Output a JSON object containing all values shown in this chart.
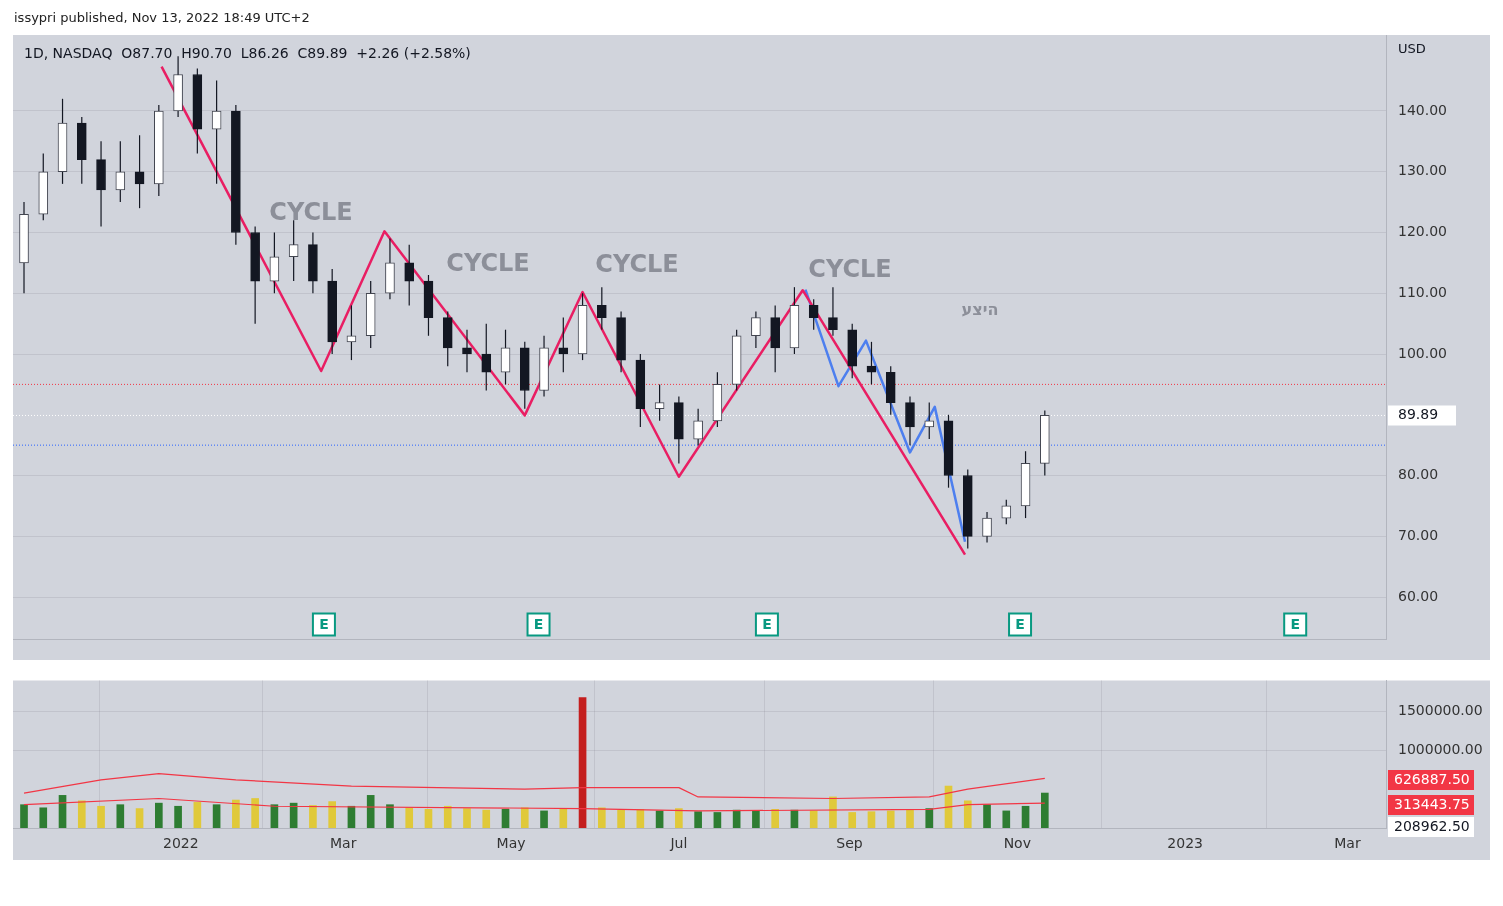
{
  "chart_data": [
    {
      "type": "candlestick",
      "title": "1D, NASDAQ  O87.70  H90.70  L86.26  C89.89  +2.26 (+2.58%)",
      "subtitle": "issypri published, Nov 13, 2022 18:49 UTC+2",
      "ylabel": "USD",
      "x": [
        "2021-11-05",
        "2021-11-12",
        "2021-11-19",
        "2021-11-26",
        "2021-12-03",
        "2021-12-10",
        "2021-12-17",
        "2021-12-24",
        "2021-12-31",
        "2022-01-07",
        "2022-01-14",
        "2022-01-21",
        "2022-01-28",
        "2022-02-04",
        "2022-02-11",
        "2022-02-18",
        "2022-02-25",
        "2022-03-04",
        "2022-03-11",
        "2022-03-18",
        "2022-03-25",
        "2022-04-01",
        "2022-04-08",
        "2022-04-15",
        "2022-04-22",
        "2022-04-29",
        "2022-05-06",
        "2022-05-13",
        "2022-05-20",
        "2022-05-27",
        "2022-06-03",
        "2022-06-10",
        "2022-06-17",
        "2022-06-24",
        "2022-07-01",
        "2022-07-08",
        "2022-07-15",
        "2022-07-22",
        "2022-07-29",
        "2022-08-05",
        "2022-08-12",
        "2022-08-19",
        "2022-08-26",
        "2022-09-02",
        "2022-09-09",
        "2022-09-16",
        "2022-09-23",
        "2022-09-30",
        "2022-10-07",
        "2022-10-14",
        "2022-10-21",
        "2022-10-28",
        "2022-11-04",
        "2022-11-11"
      ],
      "ohlc": [
        [
          115,
          125,
          110,
          123
        ],
        [
          123,
          133,
          122,
          130
        ],
        [
          130,
          142,
          128,
          138
        ],
        [
          138,
          139,
          128,
          132
        ],
        [
          132,
          135,
          121,
          127
        ],
        [
          127,
          135,
          125,
          130
        ],
        [
          130,
          136,
          124,
          128
        ],
        [
          128,
          141,
          126,
          140
        ],
        [
          140,
          149,
          139,
          146
        ],
        [
          146,
          147,
          133,
          137
        ],
        [
          137,
          145,
          128,
          140
        ],
        [
          140,
          141,
          118,
          120
        ],
        [
          120,
          121,
          105,
          112
        ],
        [
          112,
          120,
          110,
          116
        ],
        [
          116,
          122,
          112,
          118
        ],
        [
          118,
          120,
          110,
          112
        ],
        [
          112,
          114,
          100,
          102
        ],
        [
          102,
          108,
          99,
          103
        ],
        [
          103,
          112,
          101,
          110
        ],
        [
          110,
          119,
          109,
          115
        ],
        [
          115,
          118,
          108,
          112
        ],
        [
          112,
          113,
          103,
          106
        ],
        [
          106,
          107,
          98,
          101
        ],
        [
          101,
          104,
          97,
          100
        ],
        [
          100,
          105,
          94,
          97
        ],
        [
          97,
          104,
          95,
          101
        ],
        [
          101,
          102,
          91,
          94
        ],
        [
          94,
          103,
          93,
          101
        ],
        [
          101,
          106,
          97,
          100
        ],
        [
          100,
          110,
          99,
          108
        ],
        [
          108,
          111,
          104,
          106
        ],
        [
          106,
          107,
          97,
          99
        ],
        [
          99,
          100,
          88,
          91
        ],
        [
          91,
          95,
          89,
          92
        ],
        [
          92,
          93,
          82,
          86
        ],
        [
          86,
          91,
          85,
          89
        ],
        [
          89,
          97,
          88,
          95
        ],
        [
          95,
          104,
          94,
          103
        ],
        [
          103,
          107,
          101,
          106
        ],
        [
          106,
          108,
          97,
          101
        ],
        [
          101,
          111,
          100,
          108
        ],
        [
          108,
          109,
          104,
          106
        ],
        [
          106,
          111,
          103,
          104
        ],
        [
          104,
          105,
          96,
          98
        ],
        [
          98,
          102,
          95,
          97
        ],
        [
          97,
          98,
          90,
          92
        ],
        [
          92,
          93,
          85,
          88
        ],
        [
          88,
          92,
          86,
          89
        ],
        [
          89,
          90,
          78,
          80
        ],
        [
          80,
          81,
          68,
          70
        ],
        [
          70,
          74,
          69,
          73
        ],
        [
          73,
          76,
          72,
          75
        ],
        [
          75,
          84,
          73,
          82
        ],
        [
          82,
          90.7,
          80,
          89.89
        ]
      ],
      "series": [
        {
          "type": "line",
          "color": "#e91e63",
          "x": [
            "2021-12-25",
            "2022-02-21",
            "2022-03-16",
            "2022-05-06",
            "2022-05-27",
            "2022-07-01",
            "2022-08-15",
            "2022-10-13"
          ],
          "values": [
            147.3,
            97.2,
            120.2,
            89.9,
            110.2,
            79.8,
            110.5,
            67
          ]
        },
        {
          "type": "line",
          "color": "#4d7fef",
          "x": [
            "2022-08-16",
            "2022-08-28",
            "2022-09-07",
            "2022-09-23",
            "2022-10-02",
            "2022-10-13"
          ],
          "values": [
            110.6,
            94.7,
            102.2,
            83.8,
            91.3,
            69.1
          ]
        }
      ],
      "xlim": [
        "2021-11-01",
        "2023-03-15"
      ],
      "xticks": [
        {
          "value": "2022-01-01",
          "label": null
        },
        {
          "value": "2022-03-01",
          "label": null
        },
        {
          "value": "2022-05-01",
          "label": null
        },
        {
          "value": "2022-07-01",
          "label": null
        },
        {
          "value": "2022-09-01",
          "label": null
        },
        {
          "value": "2022-11-01",
          "label": null
        },
        {
          "value": "2023-01-01",
          "label": null
        },
        {
          "value": "2023-03-01",
          "label": null
        }
      ],
      "ylim": [
        53,
        152.5
      ],
      "yticks": [
        {
          "value": 60,
          "label": "60.00"
        },
        {
          "value": 70,
          "label": "70.00"
        },
        {
          "value": 80,
          "label": "80.00"
        },
        {
          "value": 90,
          "label": null
        },
        {
          "value": 100,
          "label": "100.00"
        },
        {
          "value": 110,
          "label": "110.00"
        },
        {
          "value": 120,
          "label": "120.00"
        },
        {
          "value": 130,
          "label": "130.00"
        },
        {
          "value": 140,
          "label": "140.00"
        }
      ],
      "ref_lines": [
        {
          "axis": "y",
          "value": 95,
          "color": "#f23645",
          "line_style": "dotted"
        },
        {
          "axis": "y",
          "value": 85,
          "color": "#2962ff",
          "line_style": "dotted"
        },
        {
          "axis": "y",
          "value": 89.89,
          "color": "#ffffff",
          "line_style": "dotted",
          "label": "89.89"
        }
      ],
      "annotations": [
        "CYCLE",
        "CYCLE",
        "CYCLE",
        "CYCLE",
        "היצע",
        {
          "text": "E",
          "x": "2022-02-22",
          "y": 55.5
        },
        {
          "text": "E",
          "x": "2022-05-11",
          "y": 55.5
        },
        {
          "text": "E",
          "x": "2022-08-02",
          "y": 55.5
        },
        {
          "text": "E",
          "x": "2022-11-02",
          "y": 55.5
        },
        {
          "text": "E",
          "x": "2023-02-10",
          "y": 55.5
        }
      ],
      "grid": true,
      "legend": false,
      "tick_labels": "y"
    },
    {
      "type": "bar",
      "x": [
        "2021-11-05",
        "2021-11-12",
        "2021-11-19",
        "2021-11-26",
        "2021-12-03",
        "2021-12-10",
        "2021-12-17",
        "2021-12-24",
        "2021-12-31",
        "2022-01-07",
        "2022-01-14",
        "2022-01-21",
        "2022-01-28",
        "2022-02-04",
        "2022-02-11",
        "2022-02-18",
        "2022-02-25",
        "2022-03-04",
        "2022-03-11",
        "2022-03-18",
        "2022-03-25",
        "2022-04-01",
        "2022-04-08",
        "2022-04-15",
        "2022-04-22",
        "2022-04-29",
        "2022-05-06",
        "2022-05-13",
        "2022-05-20",
        "2022-05-27",
        "2022-06-03",
        "2022-06-10",
        "2022-06-17",
        "2022-06-24",
        "2022-07-01",
        "2022-07-08",
        "2022-07-15",
        "2022-07-22",
        "2022-07-29",
        "2022-08-05",
        "2022-08-12",
        "2022-08-19",
        "2022-08-26",
        "2022-09-02",
        "2022-09-09",
        "2022-09-16",
        "2022-09-23",
        "2022-09-30",
        "2022-10-07",
        "2022-10-14",
        "2022-10-21",
        "2022-10-28",
        "2022-11-04",
        "2022-11-11"
      ],
      "series": [
        {
          "type": "bar",
          "values": [
            300000,
            260000,
            420000,
            350000,
            280000,
            300000,
            250000,
            320000,
            280000,
            330000,
            300000,
            360000,
            380000,
            300000,
            320000,
            290000,
            340000,
            280000,
            420000,
            300000,
            260000,
            240000,
            280000,
            250000,
            230000,
            240000,
            260000,
            220000,
            250000,
            1680000,
            260000,
            230000,
            240000,
            220000,
            250000,
            210000,
            200000,
            230000,
            220000,
            240000,
            230000,
            220000,
            400000,
            200000,
            210000,
            220000,
            230000,
            250000,
            540000,
            350000,
            300000,
            220000,
            280000,
            450000
          ],
          "colors": [
            "#2e7d32",
            "#2e7d32",
            "#2e7d32",
            "#e0c93a",
            "#e0c93a",
            "#2e7d32",
            "#e0c93a",
            "#2e7d32",
            "#2e7d32",
            "#e0c93a",
            "#2e7d32",
            "#e0c93a",
            "#e0c93a",
            "#2e7d32",
            "#2e7d32",
            "#e0c93a",
            "#e0c93a",
            "#2e7d32",
            "#2e7d32",
            "#2e7d32",
            "#e0c93a",
            "#e0c93a",
            "#e0c93a",
            "#e0c93a",
            "#e0c93a",
            "#2e7d32",
            "#e0c93a",
            "#2e7d32",
            "#e0c93a",
            "#c41e1e",
            "#e0c93a",
            "#e0c93a",
            "#e0c93a",
            "#2e7d32",
            "#e0c93a",
            "#2e7d32",
            "#2e7d32",
            "#2e7d32",
            "#2e7d32",
            "#e0c93a",
            "#2e7d32",
            "#e0c93a",
            "#e0c93a",
            "#e0c93a",
            "#e0c93a",
            "#e0c93a",
            "#e0c93a",
            "#2e7d32",
            "#e0c93a",
            "#e0c93a",
            "#2e7d32",
            "#2e7d32",
            "#2e7d32",
            "#2e7d32"
          ]
        },
        {
          "type": "line",
          "color": "#f23645",
          "x": [
            "2021-11-05",
            "2021-12-03",
            "2021-12-24",
            "2022-01-21",
            "2022-03-04",
            "2022-05-06",
            "2022-05-27",
            "2022-07-01",
            "2022-07-08",
            "2022-08-26",
            "2022-09-30",
            "2022-10-14",
            "2022-11-11"
          ],
          "values": [
            450000,
            620000,
            700000,
            620000,
            540000,
            500000,
            520000,
            520000,
            400000,
            380000,
            400000,
            500000,
            640000
          ]
        },
        {
          "type": "line",
          "color": "#f23645",
          "x": [
            "2021-11-05",
            "2021-12-24",
            "2022-02-04",
            "2022-05-27",
            "2022-07-08",
            "2022-09-30",
            "2022-10-14",
            "2022-11-11"
          ],
          "values": [
            300000,
            380000,
            280000,
            250000,
            220000,
            240000,
            300000,
            320000
          ]
        }
      ],
      "xlim": [
        "2021-11-01",
        "2023-03-15"
      ],
      "xticks": [
        {
          "value": "2022-01-01",
          "label": "2022"
        },
        {
          "value": "2022-03-01",
          "label": "Mar"
        },
        {
          "value": "2022-05-01",
          "label": "May"
        },
        {
          "value": "2022-07-01",
          "label": "Jul"
        },
        {
          "value": "2022-09-01",
          "label": "Sep"
        },
        {
          "value": "2022-11-01",
          "label": "Nov"
        },
        {
          "value": "2023-01-01",
          "label": "2023"
        },
        {
          "value": "2023-03-01",
          "label": "Mar"
        }
      ],
      "ylim": [
        0,
        1900000
      ],
      "yticks": [
        {
          "value": 1000000,
          "label": "1000000.00"
        },
        {
          "value": 1500000,
          "label": "1500000.00"
        }
      ],
      "annotations": [
        "626887.50",
        "313443.75",
        "208962.50"
      ],
      "grid": true,
      "legend": false
    }
  ]
}
